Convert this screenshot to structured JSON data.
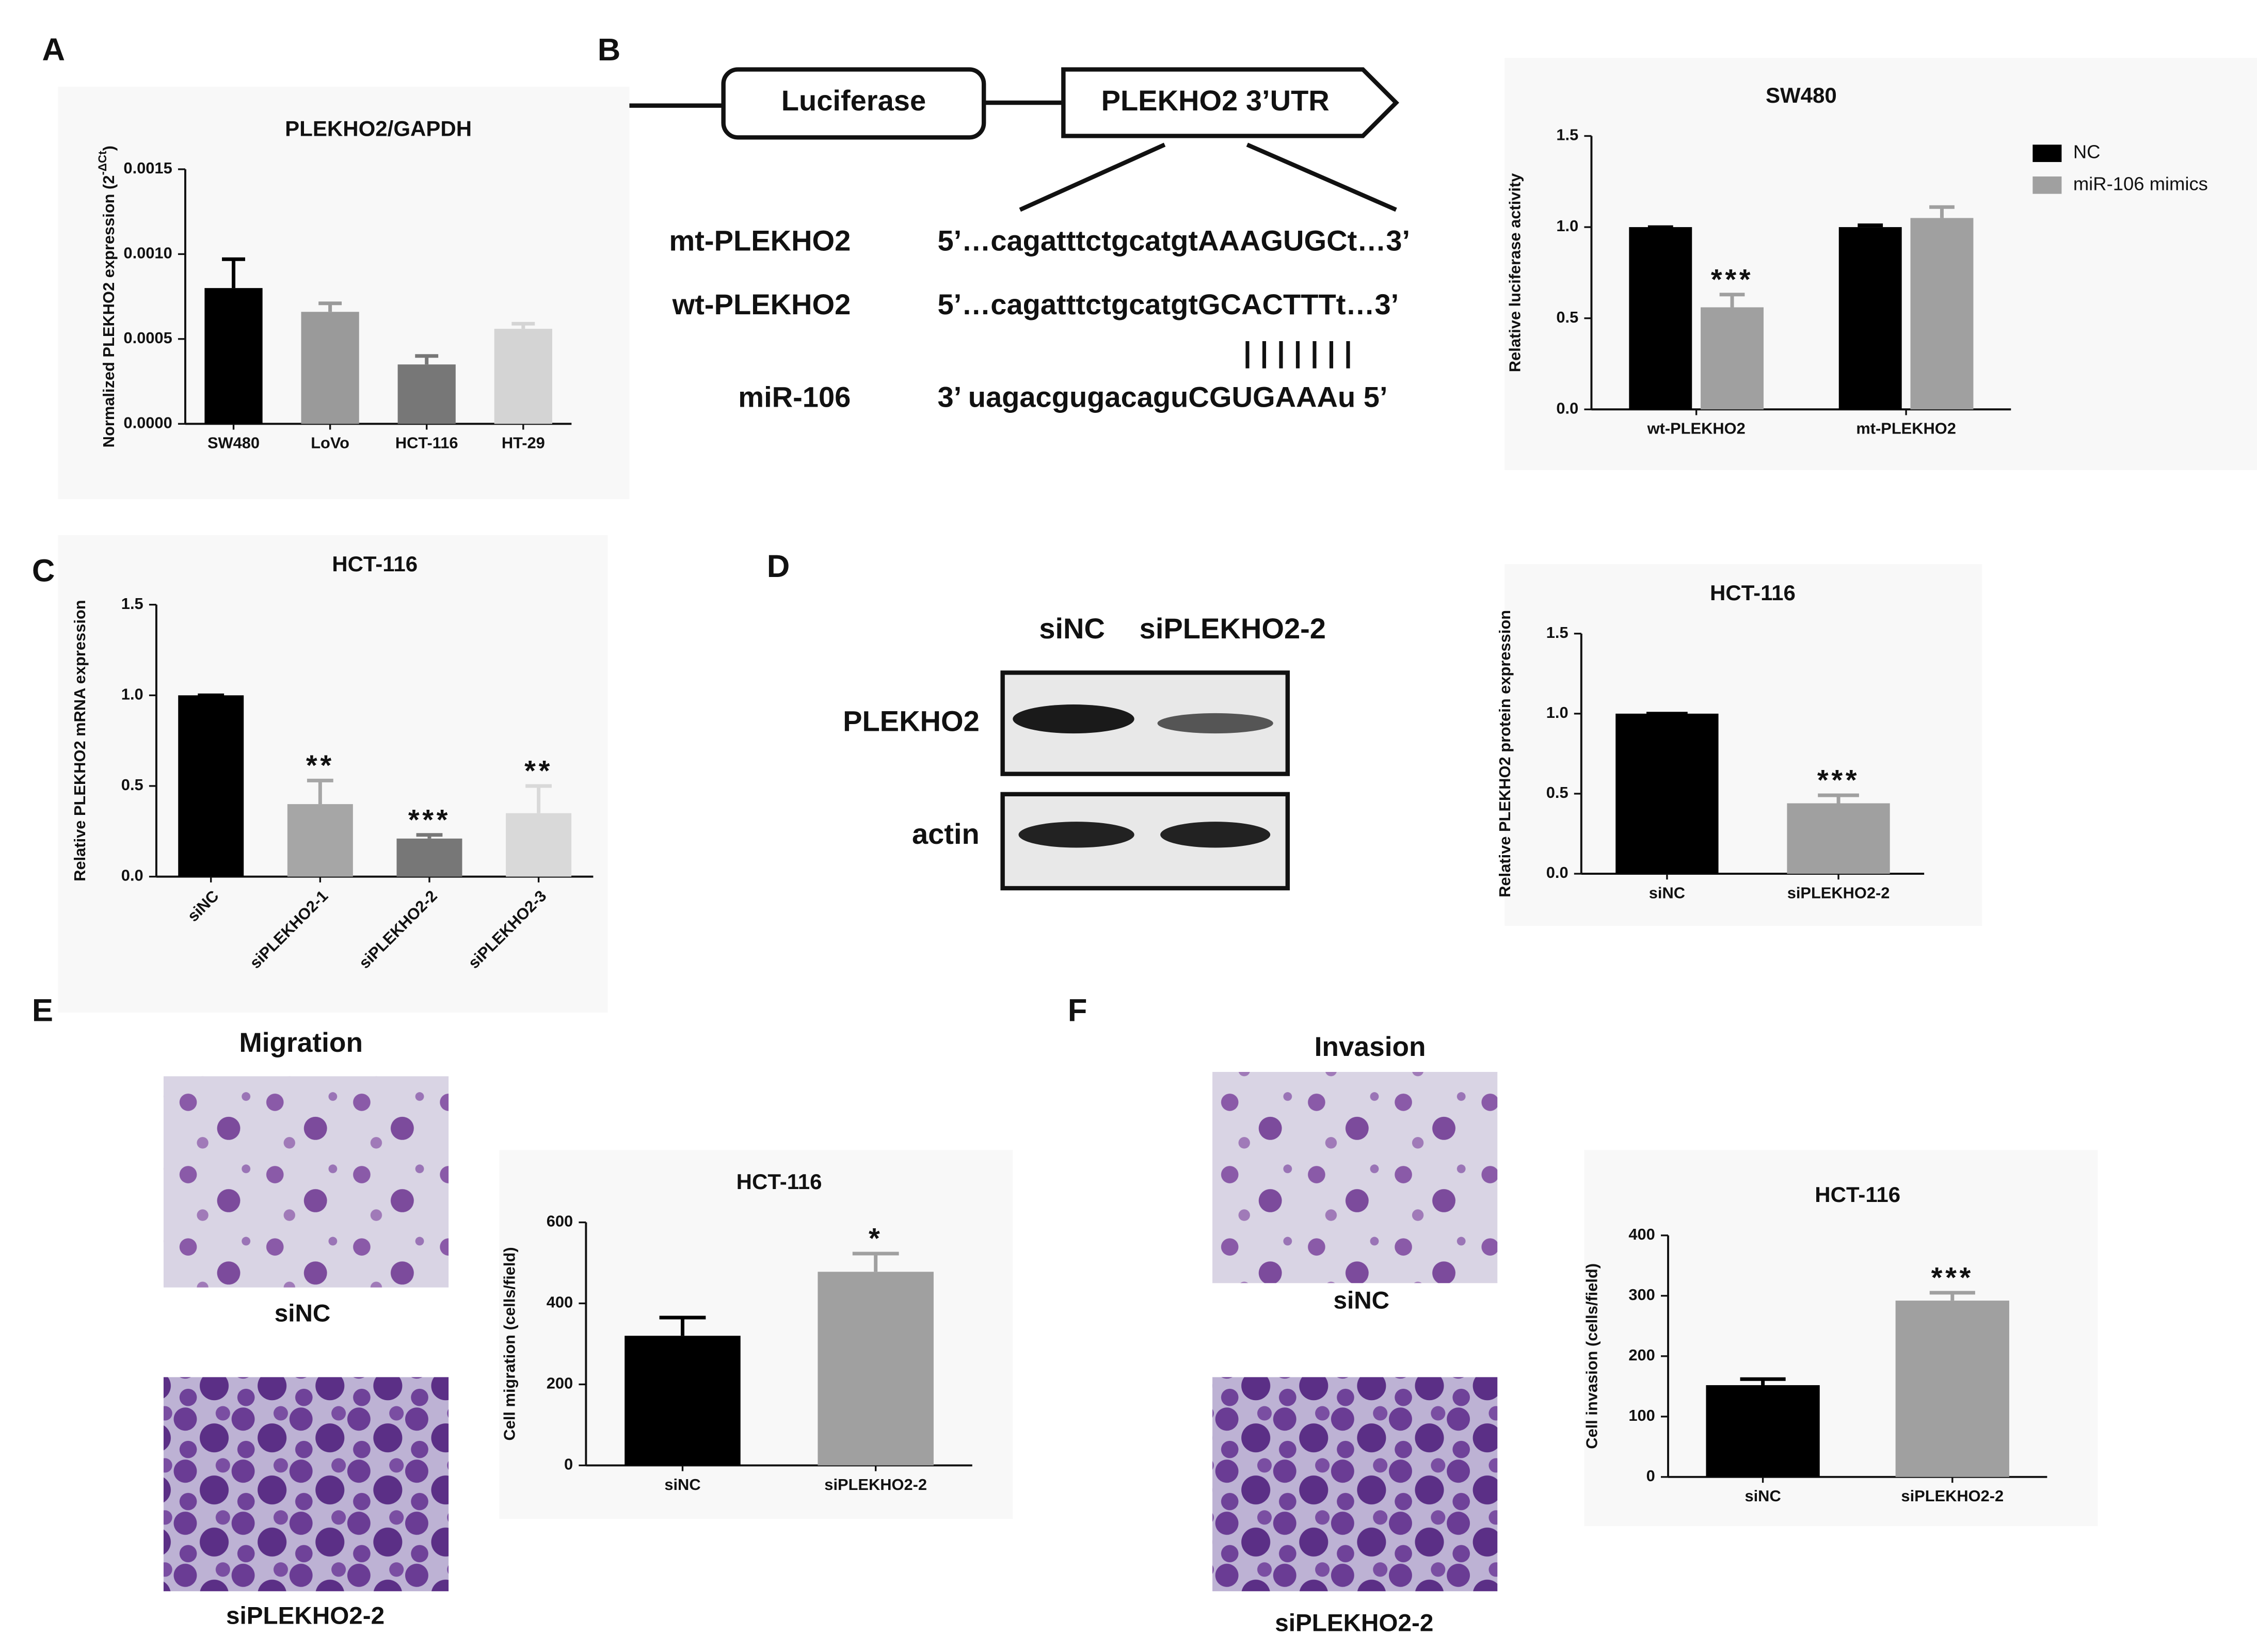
{
  "figure": {
    "panel_labels": [
      "A",
      "B",
      "C",
      "D",
      "E",
      "F"
    ],
    "diagram": {
      "luciferase": "Luciferase",
      "utr": "PLEKHO2  3’UTR",
      "rows": [
        {
          "name": "mt-PLEKHO2",
          "sequence": "5’…cagatttctgcatgtAAAGUGCt…3’"
        },
        {
          "name": "wt-PLEKHO2",
          "sequence": "5’…cagatttctgcatgtGCACTTTt…3’"
        },
        {
          "name": "miR-106",
          "sequence": "3’  uagacgugacaguCGUGAAAu  5’"
        }
      ],
      "pairing": "|||||||"
    },
    "blot": {
      "lanes": [
        "siNC",
        "siPLEKHO2-2"
      ],
      "rows": [
        "PLEKHO2",
        "actin"
      ]
    },
    "migration": {
      "title": "Migration",
      "captions": [
        "siNC",
        "siPLEKHO2-2"
      ]
    },
    "invasion": {
      "title": "Invasion",
      "captions": [
        "siNC",
        "siPLEKHO2-2"
      ]
    }
  },
  "chart_data": [
    {
      "type": "bar",
      "title": "PLEKHO2/GAPDH",
      "ylabel": "Normalized PLEKHO2 expression (2",
      "ylabel_sup": "-ΔCt",
      "ylabel_end": ")",
      "categories": [
        "SW480",
        "LoVo",
        "HCT-116",
        "HT-29"
      ],
      "series": [
        {
          "values": [
            0.0008,
            0.00066,
            0.00035,
            0.00056
          ],
          "errors": [
            0.00017,
            5e-05,
            5e-05,
            3e-05
          ],
          "colors": [
            "#000000",
            "#9a9a9a",
            "#777777",
            "#d4d4d4"
          ]
        }
      ],
      "ylim": [
        0,
        0.0015
      ],
      "yticks": [
        {
          "value": 0,
          "label": "0.0000"
        },
        {
          "value": 0.0005,
          "label": "0.0005"
        },
        {
          "value": 0.001,
          "label": "0.0010"
        },
        {
          "value": 0.0015,
          "label": "0.0015"
        }
      ]
    },
    {
      "type": "bar",
      "title": "SW480",
      "ylabel": "Relative luciferase activity",
      "categories": [
        "wt-PLEKHO2",
        "mt-PLEKHO2"
      ],
      "series": [
        {
          "name": "NC",
          "color": "#000000",
          "values": [
            1.0,
            1.0
          ],
          "errors": [
            0,
            0.01
          ],
          "annotations": [
            null,
            null
          ]
        },
        {
          "name": "miR-106 mimics",
          "color": "#a0a0a0",
          "values": [
            0.56,
            1.05
          ],
          "errors": [
            0.07,
            0.06
          ],
          "annotations": [
            "***",
            null
          ]
        }
      ],
      "ylim": [
        0,
        1.5
      ],
      "yticks": [
        {
          "value": 0,
          "label": "0.0"
        },
        {
          "value": 0.5,
          "label": "0.5"
        },
        {
          "value": 1,
          "label": "1.0"
        },
        {
          "value": 1.5,
          "label": "1.5"
        }
      ]
    },
    {
      "type": "bar",
      "title": "HCT-116",
      "ylabel": "Relative PLEKHO2 mRNA expression",
      "categories": [
        "siNC",
        "siPLEKHO2-1",
        "siPLEKHO2-2",
        "siPLEKHO2-3"
      ],
      "x_label_rotation": -45,
      "series": [
        {
          "values": [
            1.0,
            0.4,
            0.21,
            0.35
          ],
          "errors": [
            0,
            0.13,
            0.02,
            0.15
          ],
          "colors": [
            "#000000",
            "#a6a6a6",
            "#777777",
            "#d9d9d9"
          ],
          "annotations": [
            null,
            "**",
            "***",
            "**"
          ]
        }
      ],
      "ylim": [
        0,
        1.5
      ],
      "yticks": [
        {
          "value": 0,
          "label": "0.0"
        },
        {
          "value": 0.5,
          "label": "0.5"
        },
        {
          "value": 1,
          "label": "1.0"
        },
        {
          "value": 1.5,
          "label": "1.5"
        }
      ]
    },
    {
      "type": "bar",
      "title": "HCT-116",
      "ylabel": "Relative PLEKHO2 protein expression",
      "categories": [
        "siNC",
        "siPLEKHO2-2"
      ],
      "series": [
        {
          "values": [
            1.0,
            0.44
          ],
          "errors": [
            0,
            0.05
          ],
          "colors": [
            "#000000",
            "#a0a0a0"
          ],
          "annotations": [
            null,
            "***"
          ]
        }
      ],
      "ylim": [
        0,
        1.5
      ],
      "yticks": [
        {
          "value": 0,
          "label": "0.0"
        },
        {
          "value": 0.5,
          "label": "0.5"
        },
        {
          "value": 1,
          "label": "1.0"
        },
        {
          "value": 1.5,
          "label": "1.5"
        }
      ]
    },
    {
      "type": "bar",
      "title": "HCT-116",
      "ylabel": "Cell migration (cells/field)",
      "categories": [
        "siNC",
        "siPLEKHO2-2"
      ],
      "series": [
        {
          "values": [
            320,
            478
          ],
          "errors": [
            45,
            45
          ],
          "colors": [
            "#000000",
            "#a0a0a0"
          ],
          "annotations": [
            null,
            "*"
          ]
        }
      ],
      "ylim": [
        0,
        600
      ],
      "yticks": [
        0,
        200,
        400,
        600
      ]
    },
    {
      "type": "bar",
      "title": "HCT-116",
      "ylabel": "Cell invasion (cells/field)",
      "categories": [
        "siNC",
        "siPLEKHO2-2"
      ],
      "series": [
        {
          "values": [
            152,
            292
          ],
          "errors": [
            10,
            13
          ],
          "colors": [
            "#000000",
            "#a0a0a0"
          ],
          "annotations": [
            null,
            "***"
          ]
        }
      ],
      "ylim": [
        0,
        400
      ],
      "yticks": [
        0,
        100,
        200,
        300,
        400
      ]
    }
  ]
}
